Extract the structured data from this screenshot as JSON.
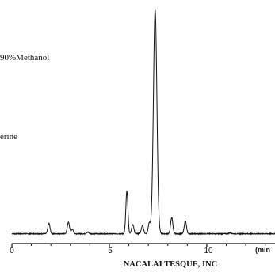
{
  "chart_data": {
    "type": "line",
    "annotations": [
      "90%Methanol",
      "erine"
    ],
    "xlabel": "(min",
    "xlim": [
      0,
      13.5
    ],
    "ylim": [
      0,
      100
    ],
    "xticks": [
      0,
      5,
      10
    ],
    "x_minor_ticks": [
      1,
      2,
      3,
      4,
      6,
      7,
      8,
      9,
      11,
      12,
      13
    ],
    "tick_labels": [
      "0",
      "5",
      "10"
    ],
    "credit": "NACALAI TESQUE, INC",
    "baseline": 1.5,
    "peaks": [
      {
        "rt": 1.9,
        "height": 4.5
      },
      {
        "rt": 2.9,
        "height": 5.0
      },
      {
        "rt": 3.1,
        "height": 2.0
      },
      {
        "rt": 3.9,
        "height": 0.7
      },
      {
        "rt": 5.9,
        "height": 18.5
      },
      {
        "rt": 6.2,
        "height": 4.0
      },
      {
        "rt": 6.7,
        "height": 3.5
      },
      {
        "rt": 7.05,
        "height": 4.5
      },
      {
        "rt": 7.35,
        "height": 97.0
      },
      {
        "rt": 8.2,
        "height": 7.0
      },
      {
        "rt": 8.9,
        "height": 5.5
      },
      {
        "rt": 11.2,
        "height": 0.4
      }
    ]
  }
}
